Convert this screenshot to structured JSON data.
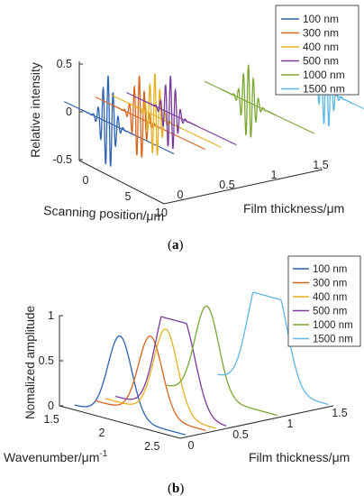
{
  "panels": {
    "a": {
      "label": "a"
    },
    "b": {
      "label": "b"
    }
  },
  "chart_data": [
    {
      "type": "line",
      "panel": "a",
      "projection": "3d",
      "xlabel": "Scanning position/μm",
      "ylabel": "Film thickness/μm",
      "zlabel": "Relative intensity",
      "xlim": [
        0,
        10
      ],
      "ylim": [
        0,
        1.5
      ],
      "zlim": [
        -0.5,
        0.5
      ],
      "x_ticks": [
        "0",
        "5",
        "10"
      ],
      "y_ticks": [
        "0",
        "0.5",
        "1",
        "1.5"
      ],
      "z_ticks": [
        "-0.5",
        "0",
        "0.5"
      ],
      "legend_position": "top-right",
      "series": [
        {
          "name": "100 nm",
          "color": "#2c62b0",
          "thickness": 0.1,
          "center": 3.5,
          "amplitude": 0.5
        },
        {
          "name": "300 nm",
          "color": "#d9641c",
          "thickness": 0.3,
          "center": 3.5,
          "amplitude": 0.45
        },
        {
          "name": "400 nm",
          "color": "#e6b01e",
          "thickness": 0.4,
          "center": 3.5,
          "amplitude": 0.45
        },
        {
          "name": "500 nm",
          "color": "#7a3a9a",
          "thickness": 0.5,
          "center": 3.5,
          "amplitude": 0.4
        },
        {
          "name": "1000 nm",
          "color": "#7aa832",
          "thickness": 1.0,
          "center": 3.5,
          "amplitude": 0.4
        },
        {
          "name": "1500 nm",
          "color": "#5cb8e6",
          "thickness": 1.5,
          "center": 3.5,
          "amplitude": 0.4
        }
      ]
    },
    {
      "type": "line",
      "panel": "b",
      "projection": "3d",
      "xlabel": "Wavenumber/μm",
      "xlabel_superscript": "-1",
      "ylabel": "Film thickness/μm",
      "zlabel": "Nomalized amplitude",
      "xlim": [
        1.4,
        2.6
      ],
      "ylim": [
        0,
        1.5
      ],
      "zlim": [
        0,
        1
      ],
      "x_ticks": [
        "1.5",
        "2",
        "2.5"
      ],
      "y_ticks": [
        "0",
        "0.5",
        "1",
        "1.5"
      ],
      "z_ticks": [
        "0",
        "0.5",
        "1"
      ],
      "legend_position": "top-right",
      "series": [
        {
          "name": "100 nm",
          "color": "#2c62b0",
          "thickness": 0.1,
          "peaks": [
            [
              1.9,
              0.9
            ]
          ]
        },
        {
          "name": "300 nm",
          "color": "#d9641c",
          "thickness": 0.3,
          "peaks": [
            [
              2.0,
              0.88
            ]
          ]
        },
        {
          "name": "400 nm",
          "color": "#e6b01e",
          "thickness": 0.4,
          "peaks": [
            [
              2.05,
              0.95
            ]
          ]
        },
        {
          "name": "500 nm",
          "color": "#7a3a9a",
          "thickness": 0.5,
          "peaks": [
            [
              1.95,
              1.0
            ],
            [
              2.15,
              0.8
            ]
          ]
        },
        {
          "name": "1000 nm",
          "color": "#7aa832",
          "thickness": 1.0,
          "peaks": [
            [
              1.85,
              1.0
            ]
          ]
        },
        {
          "name": "1500 nm",
          "color": "#5cb8e6",
          "thickness": 1.5,
          "peaks": [
            [
              1.85,
              1.0
            ],
            [
              2.05,
              0.9
            ]
          ]
        }
      ]
    }
  ]
}
